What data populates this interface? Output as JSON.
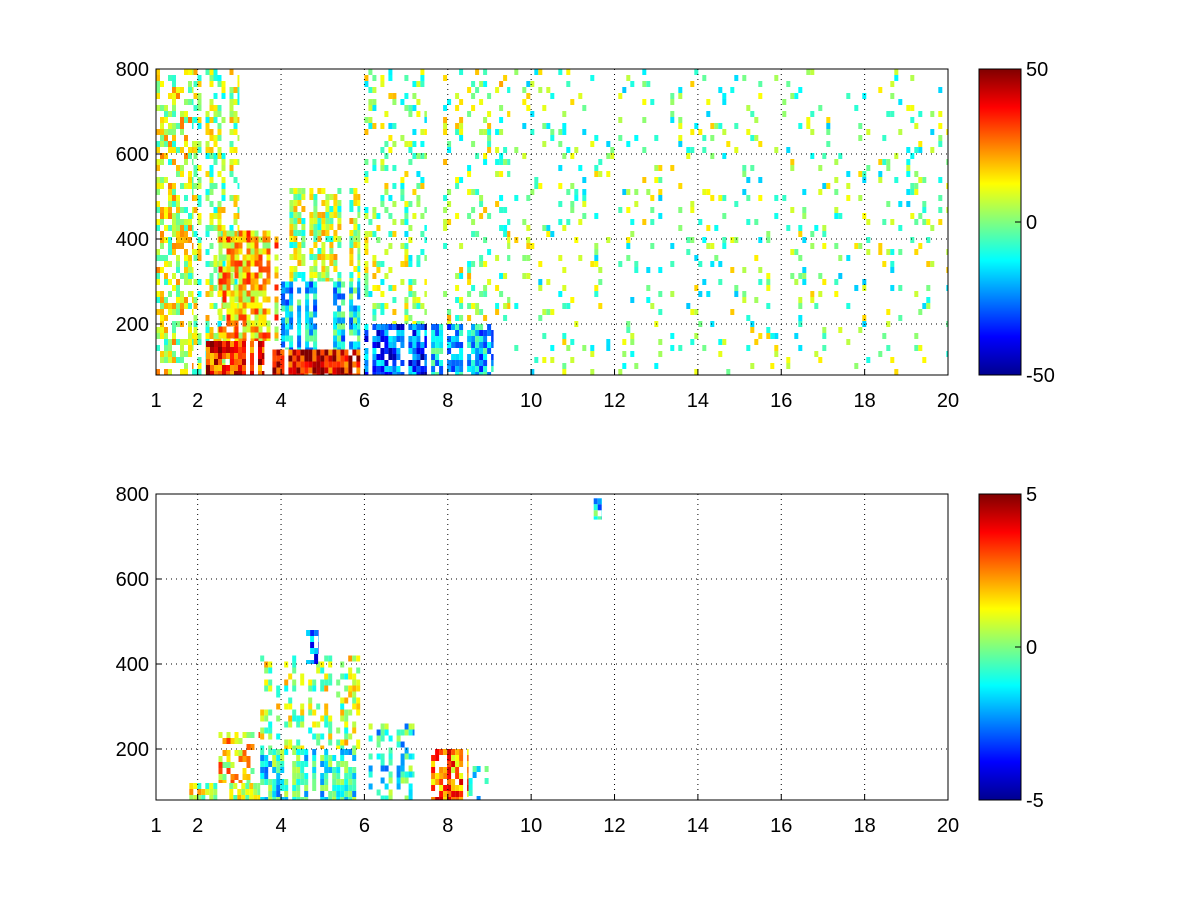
{
  "chart_data": [
    {
      "type": "heatmap",
      "title": "",
      "xlabel": "",
      "ylabel": "",
      "xlim": [
        1,
        20
      ],
      "ylim": [
        80,
        800
      ],
      "xticks": [
        1,
        2,
        4,
        6,
        8,
        10,
        12,
        14,
        16,
        18,
        20
      ],
      "yticks": [
        200,
        400,
        600,
        800
      ],
      "grid": true,
      "colormap": "jet",
      "colorbar": {
        "min": -50,
        "max": 50,
        "ticks": [
          50,
          0,
          -50
        ]
      },
      "regions": [
        {
          "x": [
            1.0,
            1.9
          ],
          "y": [
            80,
            800
          ],
          "value": 8,
          "density": 0.55
        },
        {
          "x": [
            1.9,
            3.0
          ],
          "y": [
            80,
            800
          ],
          "value": 4,
          "density": 0.45
        },
        {
          "x": [
            2.2,
            3.6
          ],
          "y": [
            80,
            160
          ],
          "value": 35,
          "density": 0.95
        },
        {
          "x": [
            2.5,
            4.0
          ],
          "y": [
            160,
            420
          ],
          "value": 18,
          "density": 0.8
        },
        {
          "x": [
            3.6,
            5.9
          ],
          "y": [
            80,
            140
          ],
          "value": 40,
          "density": 0.95
        },
        {
          "x": [
            4.0,
            5.9
          ],
          "y": [
            140,
            300
          ],
          "value": -15,
          "density": 0.85
        },
        {
          "x": [
            4.2,
            5.9
          ],
          "y": [
            300,
            520
          ],
          "value": 5,
          "density": 0.7
        },
        {
          "x": [
            6.0,
            7.5
          ],
          "y": [
            80,
            200
          ],
          "value": -30,
          "density": 0.85
        },
        {
          "x": [
            6.0,
            7.5
          ],
          "y": [
            200,
            800
          ],
          "value": 2,
          "density": 0.3
        },
        {
          "x": [
            7.6,
            9.1
          ],
          "y": [
            80,
            200
          ],
          "value": -18,
          "density": 0.85
        },
        {
          "x": [
            7.6,
            9.5
          ],
          "y": [
            200,
            800
          ],
          "value": 4,
          "density": 0.25
        },
        {
          "x": [
            9.5,
            20.0
          ],
          "y": [
            80,
            800
          ],
          "value": 0,
          "density": 0.13
        }
      ]
    },
    {
      "type": "heatmap",
      "title": "",
      "xlabel": "",
      "ylabel": "",
      "xlim": [
        1,
        20
      ],
      "ylim": [
        80,
        800
      ],
      "xticks": [
        1,
        2,
        4,
        6,
        8,
        10,
        12,
        14,
        16,
        18,
        20
      ],
      "yticks": [
        200,
        400,
        600,
        800
      ],
      "grid": true,
      "colormap": "jet",
      "colorbar": {
        "min": -5,
        "max": 5,
        "ticks": [
          5,
          0,
          -5
        ]
      },
      "regions": [
        {
          "x": [
            1.8,
            3.5
          ],
          "y": [
            80,
            120
          ],
          "value": 0.8,
          "density": 0.9
        },
        {
          "x": [
            2.5,
            3.5
          ],
          "y": [
            120,
            240
          ],
          "value": 1.5,
          "density": 0.5
        },
        {
          "x": [
            3.5,
            5.9
          ],
          "y": [
            80,
            200
          ],
          "value": -1,
          "density": 0.8
        },
        {
          "x": [
            3.5,
            5.9
          ],
          "y": [
            200,
            420
          ],
          "value": 0.5,
          "density": 0.45
        },
        {
          "x": [
            4.6,
            4.9
          ],
          "y": [
            400,
            480
          ],
          "value": -3,
          "density": 0.6
        },
        {
          "x": [
            6.1,
            7.2
          ],
          "y": [
            80,
            260
          ],
          "value": -1,
          "density": 0.5
        },
        {
          "x": [
            7.6,
            8.5
          ],
          "y": [
            80,
            200
          ],
          "value": 2.5,
          "density": 0.8
        },
        {
          "x": [
            8.5,
            9.0
          ],
          "y": [
            80,
            160
          ],
          "value": -1,
          "density": 0.4
        },
        {
          "x": [
            11.5,
            11.7
          ],
          "y": [
            740,
            790
          ],
          "value": -1.5,
          "density": 0.8
        }
      ]
    }
  ]
}
